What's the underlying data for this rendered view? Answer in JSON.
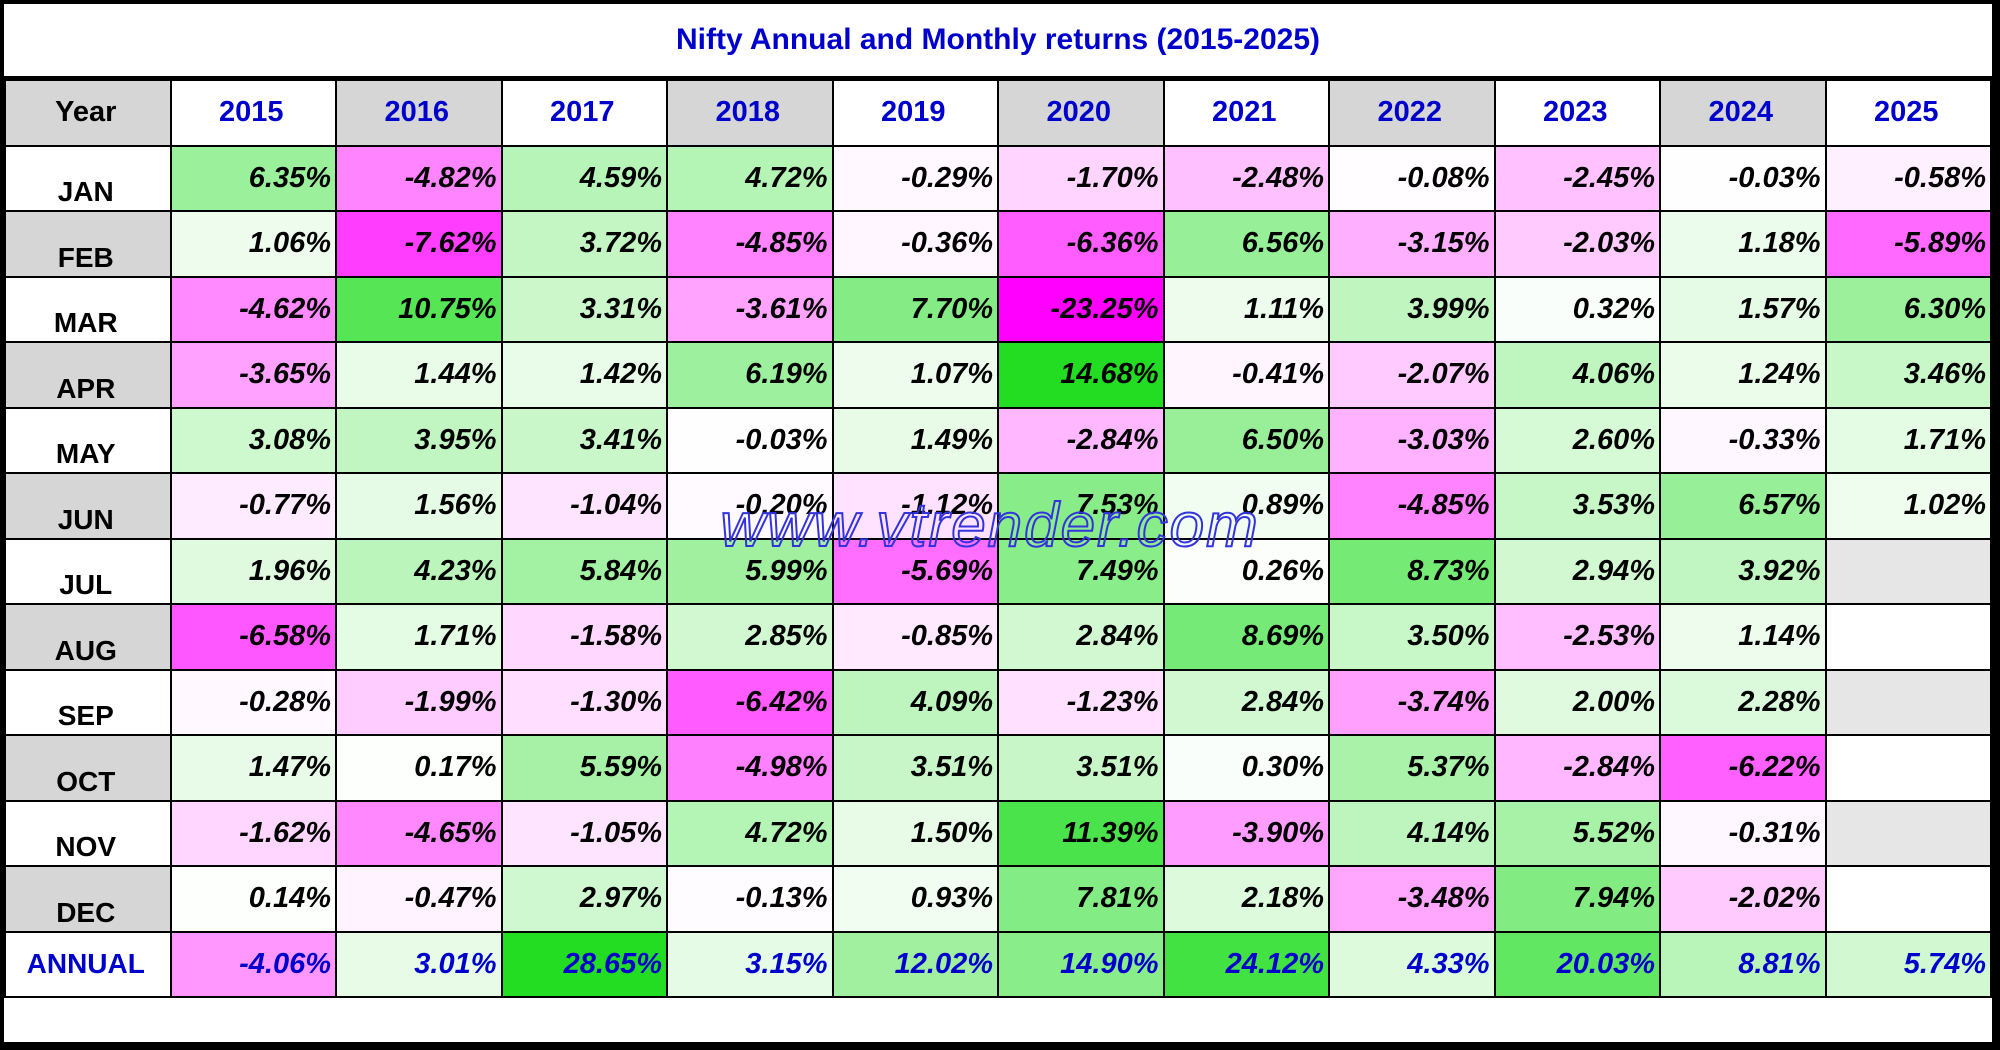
{
  "chart_data": {
    "type": "table",
    "title": "Nifty Annual and Monthly returns (2015-2025)",
    "corner_label": "Year",
    "years": [
      "2015",
      "2016",
      "2017",
      "2018",
      "2019",
      "2020",
      "2021",
      "2022",
      "2023",
      "2024",
      "2025"
    ],
    "rows": [
      {
        "label": "JAN",
        "values": [
          "6.35%",
          "-4.82%",
          "4.59%",
          "4.72%",
          "-0.29%",
          "-1.70%",
          "-2.48%",
          "-0.08%",
          "-2.45%",
          "-0.03%",
          "-0.58%"
        ]
      },
      {
        "label": "FEB",
        "values": [
          "1.06%",
          "-7.62%",
          "3.72%",
          "-4.85%",
          "-0.36%",
          "-6.36%",
          "6.56%",
          "-3.15%",
          "-2.03%",
          "1.18%",
          "-5.89%"
        ]
      },
      {
        "label": "MAR",
        "values": [
          "-4.62%",
          "10.75%",
          "3.31%",
          "-3.61%",
          "7.70%",
          "-23.25%",
          "1.11%",
          "3.99%",
          "0.32%",
          "1.57%",
          "6.30%"
        ]
      },
      {
        "label": "APR",
        "values": [
          "-3.65%",
          "1.44%",
          "1.42%",
          "6.19%",
          "1.07%",
          "14.68%",
          "-0.41%",
          "-2.07%",
          "4.06%",
          "1.24%",
          "3.46%"
        ]
      },
      {
        "label": "MAY",
        "values": [
          "3.08%",
          "3.95%",
          "3.41%",
          "-0.03%",
          "1.49%",
          "-2.84%",
          "6.50%",
          "-3.03%",
          "2.60%",
          "-0.33%",
          "1.71%"
        ]
      },
      {
        "label": "JUN",
        "values": [
          "-0.77%",
          "1.56%",
          "-1.04%",
          "-0.20%",
          "-1.12%",
          "7.53%",
          "0.89%",
          "-4.85%",
          "3.53%",
          "6.57%",
          "1.02%"
        ]
      },
      {
        "label": "JUL",
        "values": [
          "1.96%",
          "4.23%",
          "5.84%",
          "5.99%",
          "-5.69%",
          "7.49%",
          "0.26%",
          "8.73%",
          "2.94%",
          "3.92%",
          ""
        ]
      },
      {
        "label": "AUG",
        "values": [
          "-6.58%",
          "1.71%",
          "-1.58%",
          "2.85%",
          "-0.85%",
          "2.84%",
          "8.69%",
          "3.50%",
          "-2.53%",
          "1.14%",
          ""
        ]
      },
      {
        "label": "SEP",
        "values": [
          "-0.28%",
          "-1.99%",
          "-1.30%",
          "-6.42%",
          "4.09%",
          "-1.23%",
          "2.84%",
          "-3.74%",
          "2.00%",
          "2.28%",
          ""
        ]
      },
      {
        "label": "OCT",
        "values": [
          "1.47%",
          "0.17%",
          "5.59%",
          "-4.98%",
          "3.51%",
          "3.51%",
          "0.30%",
          "5.37%",
          "-2.84%",
          "-6.22%",
          ""
        ]
      },
      {
        "label": "NOV",
        "values": [
          "-1.62%",
          "-4.65%",
          "-1.05%",
          "4.72%",
          "1.50%",
          "11.39%",
          "-3.90%",
          "4.14%",
          "5.52%",
          "-0.31%",
          ""
        ]
      },
      {
        "label": "DEC",
        "values": [
          "0.14%",
          "-0.47%",
          "2.97%",
          "-0.13%",
          "0.93%",
          "7.81%",
          "2.18%",
          "-3.48%",
          "7.94%",
          "-2.02%",
          ""
        ]
      }
    ],
    "annual": {
      "label": "ANNUAL",
      "values": [
        "-4.06%",
        "3.01%",
        "28.65%",
        "3.15%",
        "12.02%",
        "14.90%",
        "24.12%",
        "4.33%",
        "20.03%",
        "8.81%",
        "5.74%"
      ]
    },
    "colors": {
      "positive": "#22dd22",
      "negative": "#ff00ff",
      "header_gray": "#d6d6d6",
      "blue_text": "#0000cc"
    }
  },
  "watermark": "www.vtrender.com"
}
